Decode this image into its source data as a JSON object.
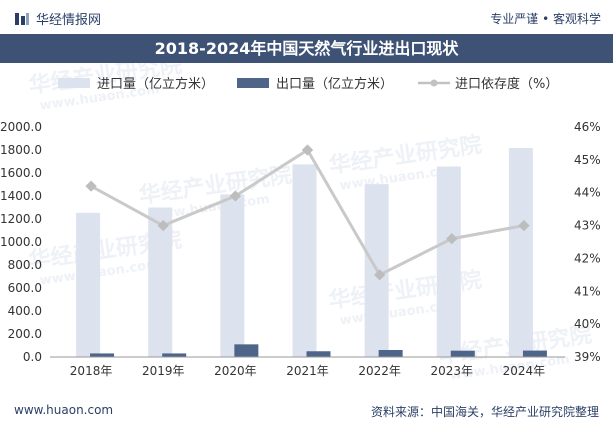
{
  "header": {
    "brand": "华经情报网",
    "slogan": "专业严谨 • 客观科学"
  },
  "title": "2018-2024年中国天然气行业进出口现状",
  "footer": {
    "website": "www.huaon.com",
    "source": "资料来源：中国海关，华经产业研究院整理"
  },
  "watermark": {
    "text": "华经产业研究院",
    "url": "www.huaon.com"
  },
  "colors": {
    "import_bar": "#dde2ef",
    "export_bar": "#4f6489",
    "dependency_line": "#c9c9c9",
    "title_bg": "#3d5274"
  },
  "chart_data": {
    "type": "bar",
    "categories": [
      "2018年",
      "2019年",
      "2020年",
      "2021年",
      "2022年",
      "2023年",
      "2024年"
    ],
    "series": [
      {
        "name": "进口量（亿立方米）",
        "type": "bar",
        "axis": "left",
        "values": [
          1254,
          1300,
          1414,
          1675,
          1503,
          1656,
          1817
        ]
      },
      {
        "name": "出口量（亿立方米）",
        "type": "bar",
        "axis": "left",
        "values": [
          31,
          31,
          110,
          50,
          61,
          55,
          56
        ]
      },
      {
        "name": "进口依存度（%）",
        "type": "line",
        "axis": "right",
        "values": [
          44.2,
          43.0,
          43.9,
          45.3,
          41.5,
          42.6,
          43.0
        ]
      }
    ],
    "y_left": {
      "min": 0,
      "max": 2000,
      "step": 200,
      "ticks": [
        "0.0",
        "200.0",
        "400.0",
        "600.0",
        "800.0",
        "1000.0",
        "1200.0",
        "1400.0",
        "1600.0",
        "1800.0",
        "2000.0"
      ]
    },
    "y_right": {
      "min": 39,
      "max": 46,
      "step": 1,
      "ticks": [
        "39%",
        "40%",
        "41%",
        "42%",
        "43%",
        "44%",
        "45%",
        "46%"
      ]
    },
    "grid": false,
    "legend": "top"
  }
}
